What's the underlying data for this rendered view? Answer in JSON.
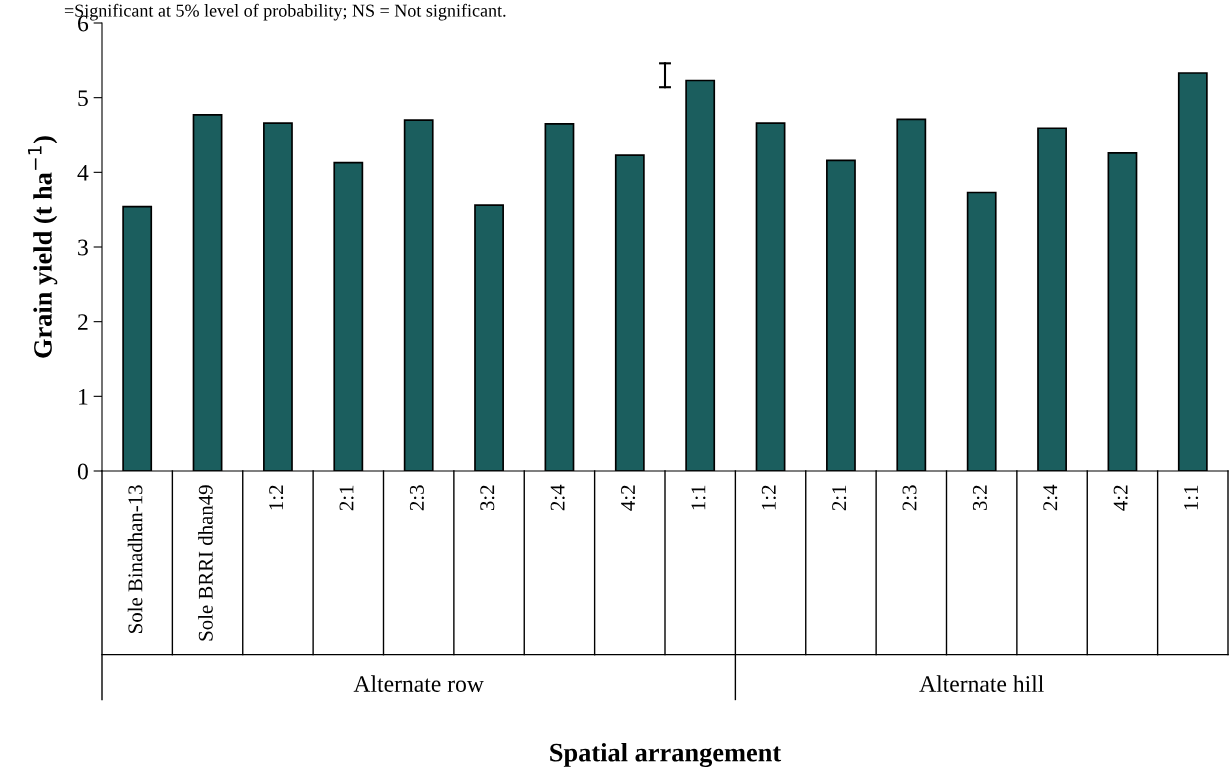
{
  "chart_data": {
    "type": "bar",
    "categories": [
      "Sole Binadhan-13",
      "Sole BRRI dhan49",
      "1:2",
      "2:1",
      "2:3",
      "3:2",
      "2:4",
      "4:2",
      "1:1",
      "1:2",
      "2:1",
      "2:3",
      "3:2",
      "2:4",
      "4:2",
      "1:1"
    ],
    "values": [
      3.54,
      4.77,
      4.66,
      4.13,
      4.7,
      3.56,
      4.65,
      4.23,
      5.23,
      4.66,
      4.16,
      4.71,
      3.73,
      4.59,
      4.26,
      5.33
    ],
    "color": "#1b5e5e",
    "ylim": [
      0,
      6
    ],
    "yticks": [
      0,
      1,
      2,
      3,
      4,
      5,
      6
    ],
    "xlabel": "Spatial arrangement",
    "ylabel": "Grain yield (t ha$^{−1}$)",
    "annotations": [
      "=Significant at 5% level of probability; NS = Not significant.",
      "Alternate row",
      "Alternate hill"
    ],
    "grid": false
  }
}
